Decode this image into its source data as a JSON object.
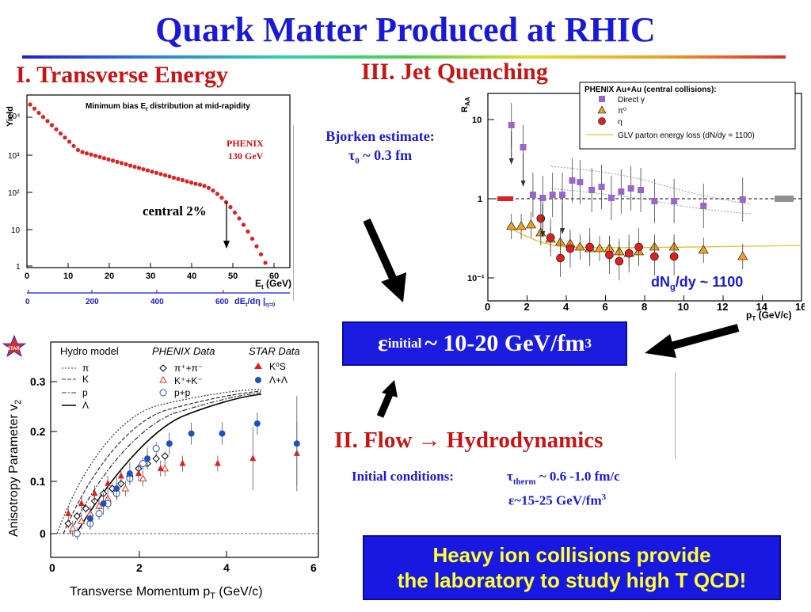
{
  "slide": {
    "title": "Quark Matter Produced at RHIC",
    "section1": "I. Transverse Energy",
    "section3": "III. Jet Quenching",
    "section2": "II. Flow → Hydrodynamics",
    "bjorken": {
      "line1": "Bjorken estimate:",
      "tau": "τ",
      "tau_sub": "0",
      "tau_rest": " ~ 0.3 fm"
    },
    "epsilon_box": {
      "eps": "ε",
      "sub": "initial",
      "rest": " ~ 10-20 GeV/fm",
      "sup": "3"
    },
    "initial_conditions": {
      "label": "Initial conditions:",
      "tau": "τ",
      "tau_sub": "therm",
      "tau_rest": " ~ 0.6 -1.0 fm/c",
      "eps_line": "ε~15-25 GeV/fm",
      "eps_sup": "3"
    },
    "heavy_ion_box": {
      "line1": "Heavy ion collisions provide",
      "line2": "the laboratory to study high T QCD!"
    }
  },
  "et_plot": {
    "caption": "Minimum bias E",
    "caption_sub": "t",
    "caption_rest": " distribution at mid-rapidity",
    "ylabel": "Yield",
    "xlabel": "E",
    "xlabel_sub": "t",
    "xlabel_rest": " (GeV)",
    "experiment": "PHENIX",
    "energy": "130 GeV",
    "central_label": "central 2%",
    "y_ticks": [
      "10⁴",
      "10³",
      "10²",
      "10",
      "1"
    ],
    "x_ticks": [
      "0",
      "10",
      "20",
      "30",
      "40",
      "50",
      "60"
    ],
    "second_axis_ticks": [
      "0",
      "200",
      "400",
      "600"
    ],
    "second_axis_label": "dE",
    "second_axis_label_sub": "t",
    "second_axis_label_rest": "/dη |",
    "second_axis_label_sub2": "η=0"
  },
  "raa_plot": {
    "ylabel": "R",
    "ylabel_sub": "AA",
    "legend_title": "PHENIX Au+Au (central collisions):",
    "legend": [
      "Direct γ",
      "π⁰",
      "η",
      "GLV parton energy loss (dN/dy = 1100)"
    ],
    "y_ticks": [
      "10",
      "1",
      "10⁻¹"
    ],
    "x_ticks": [
      "0",
      "2",
      "4",
      "6",
      "8",
      "10",
      "12",
      "14",
      "16"
    ],
    "xlabel": "p",
    "xlabel_sub": "T",
    "xlabel_rest": " (GeV/c)",
    "annotation": "dN",
    "annotation_sub": "g",
    "annotation_rest": "/dy ~ 1100"
  },
  "v2_plot": {
    "logo": "STAR",
    "ylabel": "Anisotropy Parameter v",
    "ylabel_sub": "2",
    "xlabel": "Transverse Momentum p",
    "xlabel_sub": "T",
    "xlabel_rest": " (GeV/c)",
    "y_ticks": [
      "0",
      "0.1",
      "0.2",
      "0.3"
    ],
    "x_ticks": [
      "0",
      "2",
      "4",
      "6"
    ],
    "hydro_title": "Hydro model",
    "hydro_items": [
      "π",
      "K",
      "p",
      "Λ"
    ],
    "phenix_title": "PHENIX Data",
    "phenix_items": [
      "π⁺+π⁻",
      "K⁺+K⁻",
      "p+p"
    ],
    "star_title": "STAR Data",
    "star_items": [
      "K⁰S",
      "Λ+Λ"
    ]
  },
  "colors": {
    "title": "#1a1ad6",
    "section": "#c81414",
    "box_blue": "#1c1ce0",
    "box_yellow_text": "#ffff33",
    "data_red": "#e02020",
    "data_purple": "#9966cc",
    "data_orange": "#f0a020",
    "data_blue": "#2050c0"
  }
}
